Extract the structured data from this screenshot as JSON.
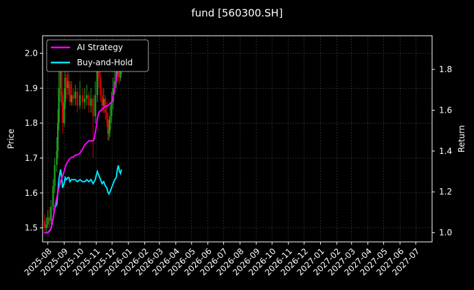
{
  "chart_data": {
    "type": "line",
    "title": "fund [560300.SH]",
    "xlabel": "",
    "ylabel_left": "Price",
    "ylabel_right": "Return",
    "x_ticks": [
      "2025-08",
      "2025-09",
      "2025-10",
      "2025-11",
      "2025-12",
      "2026-01",
      "2026-02",
      "2026-03",
      "2026-04",
      "2026-05",
      "2026-06",
      "2026-07",
      "2026-08",
      "2026-09",
      "2026-10",
      "2026-11",
      "2026-12",
      "2027-01",
      "2027-02",
      "2027-03",
      "2027-04",
      "2027-05",
      "2027-06",
      "2027-07"
    ],
    "x_range": [
      "2025-07-22",
      "2027-08-01"
    ],
    "y_left_ticks": [
      "1.5",
      "1.6",
      "1.7",
      "1.8",
      "1.9",
      "2.0"
    ],
    "y_left_range": [
      1.46,
      2.05
    ],
    "y_right_ticks": [
      "1.0",
      "1.2",
      "1.4",
      "1.6",
      "1.8"
    ],
    "y_right_range": [
      0.955,
      1.965
    ],
    "grid": true,
    "legend_position": "top-left",
    "colors": {
      "background": "#000000",
      "text": "#ffffff",
      "grid": "#555555",
      "ai": "#ff00ff",
      "bh": "#00e5ff",
      "up": "#1f9d1f",
      "down": "#d00000"
    },
    "series": [
      {
        "name": "AI Strategy",
        "axis": "right",
        "points": [
          [
            "2025-07-25",
            1.0
          ],
          [
            "2025-08-01",
            1.0
          ],
          [
            "2025-08-05",
            1.01
          ],
          [
            "2025-08-08",
            1.03
          ],
          [
            "2025-08-11",
            1.07
          ],
          [
            "2025-08-14",
            1.12
          ],
          [
            "2025-08-18",
            1.17
          ],
          [
            "2025-08-21",
            1.21
          ],
          [
            "2025-08-25",
            1.25
          ],
          [
            "2025-08-28",
            1.27
          ],
          [
            "2025-09-01",
            1.3
          ],
          [
            "2025-09-04",
            1.33
          ],
          [
            "2025-09-08",
            1.35
          ],
          [
            "2025-09-11",
            1.36
          ],
          [
            "2025-09-15",
            1.37
          ],
          [
            "2025-09-18",
            1.37
          ],
          [
            "2025-09-22",
            1.38
          ],
          [
            "2025-09-25",
            1.38
          ],
          [
            "2025-10-01",
            1.39
          ],
          [
            "2025-10-06",
            1.41
          ],
          [
            "2025-10-10",
            1.43
          ],
          [
            "2025-10-14",
            1.44
          ],
          [
            "2025-10-18",
            1.45
          ],
          [
            "2025-10-22",
            1.45
          ],
          [
            "2025-10-26",
            1.45
          ],
          [
            "2025-10-28",
            1.46
          ],
          [
            "2025-11-01",
            1.52
          ],
          [
            "2025-11-03",
            1.56
          ],
          [
            "2025-11-06",
            1.59
          ],
          [
            "2025-11-10",
            1.6
          ],
          [
            "2025-11-14",
            1.61
          ],
          [
            "2025-11-18",
            1.62
          ],
          [
            "2025-11-22",
            1.62
          ],
          [
            "2025-11-26",
            1.63
          ],
          [
            "2025-11-30",
            1.64
          ],
          [
            "2025-12-03",
            1.67
          ],
          [
            "2025-12-06",
            1.71
          ],
          [
            "2025-12-09",
            1.75
          ],
          [
            "2025-12-12",
            1.79
          ],
          [
            "2025-12-15",
            1.83
          ],
          [
            "2025-12-18",
            1.88
          ]
        ]
      },
      {
        "name": "Buy-and-Hold",
        "axis": "right",
        "points": [
          [
            "2025-07-25",
            1.0
          ],
          [
            "2025-07-29",
            1.0
          ],
          [
            "2025-08-01",
            1.0
          ],
          [
            "2025-08-04",
            1.01
          ],
          [
            "2025-08-07",
            1.02
          ],
          [
            "2025-08-11",
            1.07
          ],
          [
            "2025-08-14",
            1.12
          ],
          [
            "2025-08-18",
            1.14
          ],
          [
            "2025-08-20",
            1.2
          ],
          [
            "2025-08-22",
            1.26
          ],
          [
            "2025-08-25",
            1.31
          ],
          [
            "2025-08-27",
            1.28
          ],
          [
            "2025-08-29",
            1.22
          ],
          [
            "2025-09-01",
            1.24
          ],
          [
            "2025-09-03",
            1.27
          ],
          [
            "2025-09-05",
            1.26
          ],
          [
            "2025-09-08",
            1.27
          ],
          [
            "2025-09-10",
            1.27
          ],
          [
            "2025-09-12",
            1.25
          ],
          [
            "2025-09-15",
            1.26
          ],
          [
            "2025-09-18",
            1.26
          ],
          [
            "2025-09-22",
            1.26
          ],
          [
            "2025-09-26",
            1.25
          ],
          [
            "2025-10-01",
            1.26
          ],
          [
            "2025-10-06",
            1.25
          ],
          [
            "2025-10-10",
            1.25
          ],
          [
            "2025-10-14",
            1.26
          ],
          [
            "2025-10-18",
            1.25
          ],
          [
            "2025-10-22",
            1.26
          ],
          [
            "2025-10-26",
            1.24
          ],
          [
            "2025-10-30",
            1.26
          ],
          [
            "2025-11-03",
            1.3
          ],
          [
            "2025-11-06",
            1.28
          ],
          [
            "2025-11-09",
            1.26
          ],
          [
            "2025-11-12",
            1.24
          ],
          [
            "2025-11-15",
            1.25
          ],
          [
            "2025-11-18",
            1.23
          ],
          [
            "2025-11-21",
            1.22
          ],
          [
            "2025-11-23",
            1.2
          ],
          [
            "2025-11-25",
            1.19
          ],
          [
            "2025-11-27",
            1.2
          ],
          [
            "2025-11-30",
            1.22
          ],
          [
            "2025-12-03",
            1.24
          ],
          [
            "2025-12-06",
            1.26
          ],
          [
            "2025-12-09",
            1.27
          ],
          [
            "2025-12-11",
            1.31
          ],
          [
            "2025-12-13",
            1.33
          ],
          [
            "2025-12-15",
            1.3
          ],
          [
            "2025-12-17",
            1.29
          ],
          [
            "2025-12-19",
            1.31
          ]
        ]
      }
    ],
    "price_bars": [
      [
        "2025-07-26",
        1.52,
        1.5,
        1.54,
        1.49
      ],
      [
        "2025-07-29",
        1.5,
        1.51,
        1.53,
        1.49
      ],
      [
        "2025-08-01",
        1.51,
        1.53,
        1.55,
        1.5
      ],
      [
        "2025-08-04",
        1.53,
        1.52,
        1.56,
        1.5
      ],
      [
        "2025-08-07",
        1.52,
        1.56,
        1.58,
        1.51
      ],
      [
        "2025-08-11",
        1.56,
        1.62,
        1.64,
        1.55
      ],
      [
        "2025-08-14",
        1.62,
        1.68,
        1.7,
        1.6
      ],
      [
        "2025-08-18",
        1.68,
        1.72,
        1.76,
        1.66
      ],
      [
        "2025-08-20",
        1.72,
        1.8,
        1.84,
        1.7
      ],
      [
        "2025-08-22",
        1.8,
        1.9,
        1.95,
        1.78
      ],
      [
        "2025-08-25",
        1.9,
        1.96,
        1.99,
        1.86
      ],
      [
        "2025-08-27",
        1.96,
        1.88,
        1.97,
        1.85
      ],
      [
        "2025-08-29",
        1.88,
        1.8,
        1.89,
        1.77
      ],
      [
        "2025-09-01",
        1.8,
        1.86,
        1.9,
        1.79
      ],
      [
        "2025-09-03",
        1.86,
        1.93,
        1.95,
        1.84
      ],
      [
        "2025-09-05",
        1.93,
        1.9,
        1.94,
        1.87
      ],
      [
        "2025-09-08",
        1.9,
        1.92,
        1.96,
        1.88
      ],
      [
        "2025-09-10",
        1.92,
        1.91,
        1.94,
        1.88
      ],
      [
        "2025-09-12",
        1.91,
        1.86,
        1.92,
        1.85
      ],
      [
        "2025-09-15",
        1.86,
        1.88,
        1.92,
        1.85
      ],
      [
        "2025-09-18",
        1.88,
        1.87,
        1.9,
        1.85
      ],
      [
        "2025-09-22",
        1.87,
        1.89,
        1.91,
        1.85
      ],
      [
        "2025-09-26",
        1.89,
        1.85,
        1.9,
        1.83
      ],
      [
        "2025-10-01",
        1.85,
        1.88,
        1.92,
        1.84
      ],
      [
        "2025-10-06",
        1.88,
        1.86,
        1.9,
        1.84
      ],
      [
        "2025-10-10",
        1.86,
        1.87,
        1.9,
        1.84
      ],
      [
        "2025-10-14",
        1.87,
        1.88,
        1.91,
        1.85
      ],
      [
        "2025-10-18",
        1.88,
        1.85,
        1.89,
        1.83
      ],
      [
        "2025-10-22",
        1.85,
        1.87,
        1.9,
        1.83
      ],
      [
        "2025-10-26",
        1.87,
        1.82,
        1.88,
        1.7
      ],
      [
        "2025-10-30",
        1.82,
        1.88,
        1.92,
        1.8
      ],
      [
        "2025-11-03",
        1.88,
        1.98,
        2.01,
        1.86
      ],
      [
        "2025-11-06",
        1.98,
        1.93,
        1.99,
        1.9
      ],
      [
        "2025-11-09",
        1.93,
        1.88,
        1.95,
        1.86
      ],
      [
        "2025-11-12",
        1.88,
        1.85,
        1.9,
        1.83
      ],
      [
        "2025-11-15",
        1.85,
        1.87,
        1.9,
        1.83
      ],
      [
        "2025-11-18",
        1.87,
        1.83,
        1.88,
        1.81
      ],
      [
        "2025-11-21",
        1.83,
        1.81,
        1.86,
        1.79
      ],
      [
        "2025-11-23",
        1.81,
        1.77,
        1.83,
        1.75
      ],
      [
        "2025-11-25",
        1.77,
        1.78,
        1.81,
        1.75
      ],
      [
        "2025-11-27",
        1.78,
        1.82,
        1.85,
        1.76
      ],
      [
        "2025-11-30",
        1.82,
        1.86,
        1.89,
        1.8
      ],
      [
        "2025-12-03",
        1.86,
        1.9,
        1.93,
        1.84
      ],
      [
        "2025-12-06",
        1.9,
        1.92,
        1.95,
        1.88
      ],
      [
        "2025-12-09",
        1.92,
        1.96,
        1.99,
        1.9
      ],
      [
        "2025-12-11",
        1.96,
        2.0,
        2.03,
        1.94
      ],
      [
        "2025-12-13",
        2.0,
        1.95,
        2.01,
        1.92
      ],
      [
        "2025-12-15",
        1.95,
        1.93,
        1.98,
        1.91
      ],
      [
        "2025-12-17",
        1.93,
        1.96,
        1.99,
        1.92
      ],
      [
        "2025-12-19",
        1.96,
        1.98,
        2.0,
        1.94
      ]
    ]
  }
}
